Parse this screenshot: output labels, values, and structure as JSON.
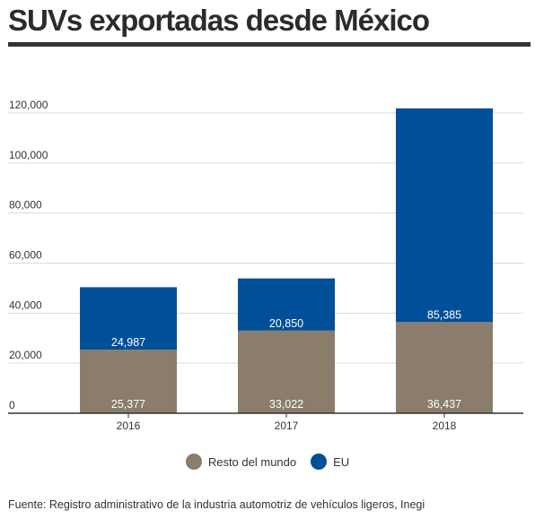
{
  "title": "SUVs exportadas desde México",
  "source": "Fuente: Registro administrativo de la industria automotriz de vehículos ligeros, Inegi",
  "colors": {
    "resto": "#8a7d6c",
    "eu": "#004f98"
  },
  "chart_data": {
    "type": "bar",
    "stacked": true,
    "categories": [
      "2016",
      "2017",
      "2018"
    ],
    "series": [
      {
        "name": "Resto del mundo",
        "values": [
          25377,
          33022,
          36437
        ],
        "labels": [
          "25,377",
          "33,022",
          "36,437"
        ]
      },
      {
        "name": "EU",
        "values": [
          24987,
          20850,
          85385
        ],
        "labels": [
          "24,987",
          "20,850",
          "85,385"
        ]
      }
    ],
    "yticks": [
      "0",
      "20,000",
      "40,000",
      "60,000",
      "80,000",
      "100,000",
      "120,000"
    ],
    "ylim": [
      0,
      120000
    ],
    "grid": true,
    "legend": "bottom-center"
  }
}
